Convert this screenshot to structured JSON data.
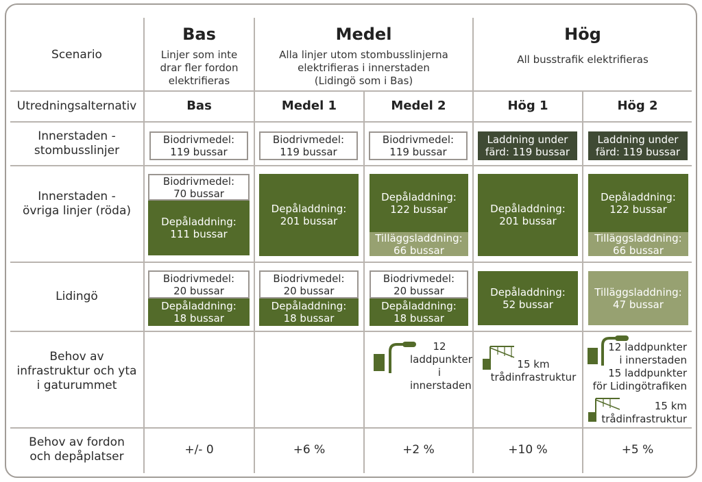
{
  "row_labels": {
    "scenario": "Scenario",
    "alternative": "Utredningsalternativ",
    "inner_trunk": "Innerstaden -\nstombusslinjer",
    "inner_other": "Innerstaden -\növriga linjer (röda)",
    "lidingo": "Lidingö",
    "infra": "Behov av\ninfrastruktur och yta\ni gaturummet",
    "vehicles": "Behov av fordon\noch depåplatser"
  },
  "scenarios": [
    {
      "title": "Bas",
      "desc": "Linjer som inte\ndrar fler fordon\nelektrifieras"
    },
    {
      "title": "Medel",
      "desc": "Alla linjer utom stombusslinjerna\nelektrifieras i innerstaden\n(Lidingö som i Bas)"
    },
    {
      "title": "Hög",
      "desc": "All busstrafik elektrifieras"
    }
  ],
  "alternatives": [
    "Bas",
    "Medel 1",
    "Medel 2",
    "Hög 1",
    "Hög 2"
  ],
  "cells": {
    "trunk": [
      "Biodrivmedel:\n119 bussar",
      "Biodrivmedel:\n119 bussar",
      "Biodrivmedel:\n119 bussar",
      "Laddning under\nfärd: 119 bussar",
      "Laddning under\nfärd: 119 bussar"
    ],
    "other": {
      "bas_top": "Biodrivmedel:\n70 bussar",
      "bas_bottom": "Depåladdning:\n111 bussar",
      "medel1": "Depåladdning:\n201 bussar",
      "medel2_top": "Depåladdning:\n122 bussar",
      "medel2_bottom": "Tilläggsladdning:\n66 bussar",
      "hog1": "Depåladdning:\n201 bussar",
      "hog2_top": "Depåladdning:\n122 bussar",
      "hog2_bottom": "Tilläggsladdning:\n66 bussar"
    },
    "lidingo": {
      "bio": "Biodrivmedel:\n20 bussar",
      "depot": "Depåladdning:\n18 bussar",
      "hog1": "Depåladdning:\n52 bussar",
      "hog2": "Tilläggsladdning:\n47 bussar"
    },
    "infra": {
      "medel2": "12\nladdpunkter i\ninnerstaden",
      "hog1": "15 km\ntrådinfrastruktur",
      "hog2_a": "12 laddpunkter\ni innerstaden\n15 laddpunkter\nför Lidingötrafiken",
      "hog2_b": "15 km\ntrådinfrastruktur"
    },
    "vehicles": [
      "+/- 0",
      "+6 %",
      "+2 %",
      "+10 %",
      "+5 %"
    ]
  },
  "colors": {
    "depot_green": "#536b2a",
    "charging_dark": "#3f4a34",
    "supplementary_light": "#97a171",
    "outline": "#9a9590"
  }
}
